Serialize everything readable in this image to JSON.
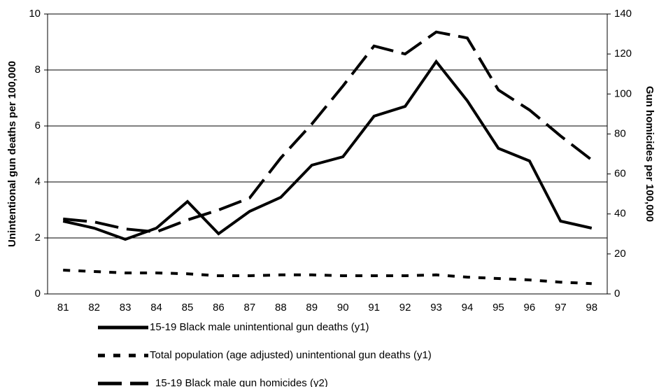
{
  "chart_data": {
    "type": "line",
    "y_label": "Unintentional gun deaths per 100,000",
    "y2_label": "Gun homicides per 100,000",
    "categories": [
      "81",
      "82",
      "83",
      "84",
      "85",
      "86",
      "87",
      "88",
      "89",
      "90",
      "91",
      "92",
      "93",
      "94",
      "95",
      "96",
      "97",
      "98"
    ],
    "series": [
      {
        "name": "15-19 Black male unintentional gun deaths (y1)",
        "color": "#000000",
        "dash": "solid",
        "axis": "y1",
        "values": [
          2.6,
          2.35,
          1.95,
          2.35,
          3.3,
          2.15,
          2.95,
          3.45,
          4.6,
          4.9,
          6.35,
          6.7,
          8.3,
          6.9,
          5.2,
          4.75,
          2.6,
          2.35
        ]
      },
      {
        "name": "Total population (age adjusted) unintentional gun deaths (y1)",
        "color": "#000000",
        "dash": "short",
        "axis": "y1",
        "values": [
          0.85,
          0.8,
          0.75,
          0.75,
          0.72,
          0.65,
          0.65,
          0.68,
          0.68,
          0.65,
          0.65,
          0.65,
          0.68,
          0.6,
          0.55,
          0.5,
          0.42,
          0.37
        ]
      },
      {
        "name": "15-19 Black male gun homicides (y2)",
        "color": "#000000",
        "dash": "long",
        "axis": "y2",
        "values": [
          37.5,
          36,
          32.5,
          31,
          37,
          42,
          48,
          68,
          85,
          104,
          124,
          120,
          131,
          128,
          102,
          92,
          79,
          67
        ]
      }
    ],
    "ylim": [
      0,
      10
    ],
    "yticks": [
      0,
      2,
      4,
      6,
      8,
      10
    ],
    "y2lim": [
      0,
      140
    ],
    "y2ticks": [
      0,
      20,
      40,
      60,
      80,
      100,
      120,
      140
    ],
    "grid": true
  }
}
